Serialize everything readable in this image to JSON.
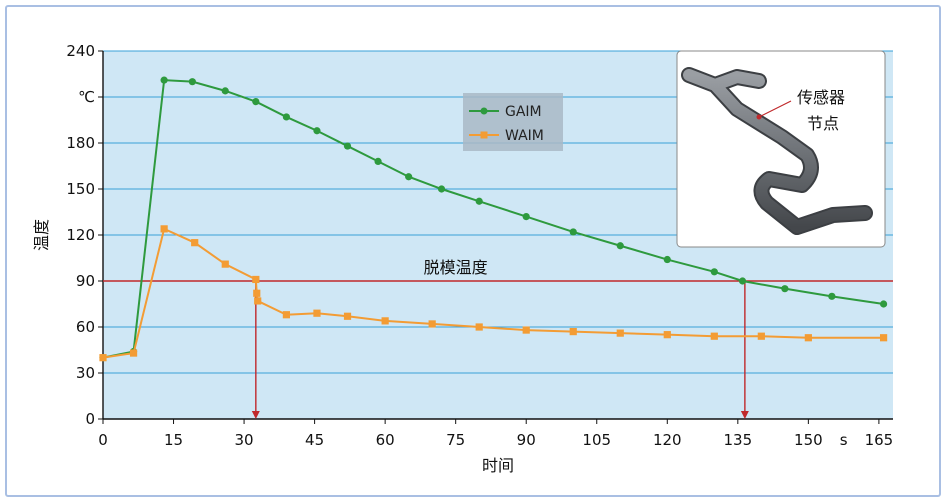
{
  "chart_data": {
    "type": "line",
    "xlabel": "时间",
    "ylabel": "温度",
    "x_unit": "s",
    "y_unit": "℃",
    "xlim": [
      0,
      168
    ],
    "ylim": [
      0,
      240
    ],
    "x_ticks": [
      0,
      15,
      30,
      45,
      60,
      75,
      90,
      105,
      120,
      135,
      150,
      165
    ],
    "y_ticks": [
      0,
      30,
      60,
      90,
      120,
      150,
      180,
      240
    ],
    "grid": true,
    "legend_position": "top-center",
    "colors": {
      "plot_bg": "#cfe7f5",
      "grid": "#3aa0d8",
      "gaim": "#2e9a3e",
      "waim": "#f39c34",
      "threshold": "#c0282b"
    },
    "threshold": {
      "label": "脱模温度",
      "value": 90
    },
    "markers": [
      32.5,
      136.5
    ],
    "series": [
      {
        "name": "GAIM",
        "x": [
          0,
          6.5,
          13,
          19,
          26,
          32.5,
          39,
          45.5,
          52,
          58.5,
          65,
          72,
          80,
          90,
          100,
          110,
          120,
          130,
          136,
          145,
          155,
          166
        ],
        "y": [
          40,
          44,
          221,
          220,
          214,
          207,
          197,
          188,
          178,
          168,
          158,
          150,
          142,
          132,
          122,
          113,
          104,
          96,
          90,
          85,
          80,
          75
        ]
      },
      {
        "name": "WAIM",
        "x": [
          0,
          6.5,
          13,
          19.5,
          26,
          32.5,
          32.7,
          32.9,
          39,
          45.5,
          52,
          60,
          70,
          80,
          90,
          100,
          110,
          120,
          130,
          140,
          150,
          166
        ],
        "y": [
          40,
          43,
          124,
          115,
          101,
          91,
          82,
          77,
          68,
          69,
          67,
          64,
          62,
          60,
          58,
          57,
          56,
          55,
          54,
          54,
          53,
          53
        ]
      }
    ],
    "inset": {
      "annotation": "传感器\n节点"
    }
  }
}
